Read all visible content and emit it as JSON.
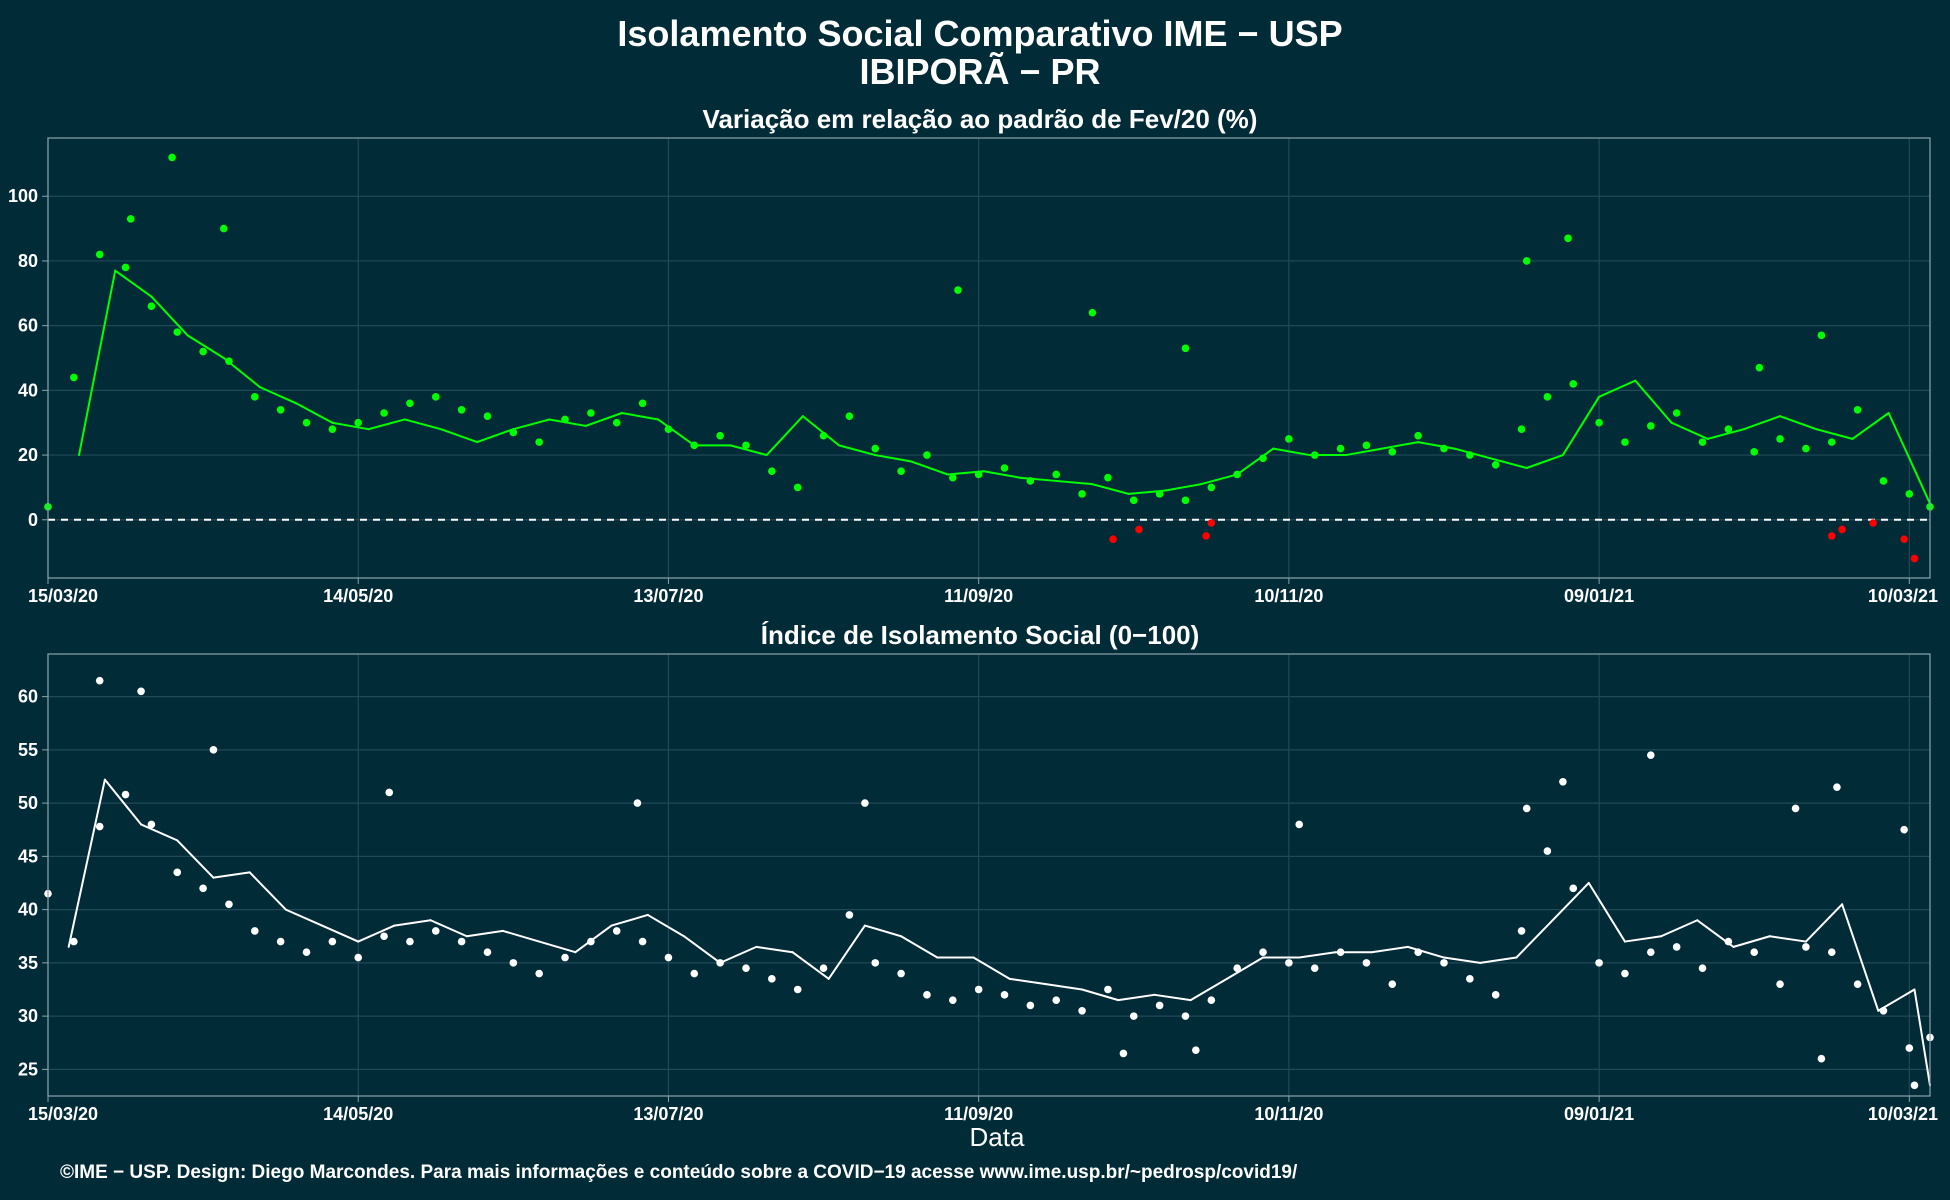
{
  "header": {
    "title": "Isolamento Social Comparativo IME − USP",
    "subtitle": "IBIPORÃ − PR"
  },
  "footer": {
    "xlabel": "Data",
    "caption": "©IME − USP. Design: Diego Marcondes. Para mais informações e conteúdo sobre a COVID−19 acesse www.ime.usp.br/~pedrosp/covid19/"
  },
  "colors": {
    "background": "#022b38",
    "positive": "#00ff00",
    "negative": "#ff0000",
    "index_series": "#ffffff",
    "grid": "#1f4a58"
  },
  "chart_data": [
    {
      "type": "scatter",
      "title": "Variação em relação ao padrão de Fev/20 (%)",
      "x_type": "date",
      "x_range": [
        "2020-03-15",
        "2021-03-14"
      ],
      "x_ticks": [
        "2020-03-15",
        "2020-05-14",
        "2020-07-13",
        "2020-09-11",
        "2020-11-10",
        "2021-01-09",
        "2021-03-10"
      ],
      "x_tick_labels": [
        "15/03/20",
        "14/05/20",
        "13/07/20",
        "11/09/20",
        "10/11/20",
        "09/01/21",
        "10/03/21"
      ],
      "ylim": [
        -18,
        118
      ],
      "y_ticks": [
        0,
        20,
        40,
        60,
        80,
        100
      ],
      "reference_line": 0,
      "grid": true,
      "series": [
        {
          "kind": "points",
          "color_rule": "green when >= 0, red when < 0",
          "x": [
            "2020-03-15",
            "2020-03-20",
            "2020-03-25",
            "2020-03-30",
            "2020-04-04",
            "2020-04-09",
            "2020-04-14",
            "2020-04-19",
            "2020-04-24",
            "2020-04-29",
            "2020-05-04",
            "2020-05-09",
            "2020-05-14",
            "2020-05-19",
            "2020-05-24",
            "2020-05-29",
            "2020-06-03",
            "2020-06-08",
            "2020-06-13",
            "2020-06-18",
            "2020-06-23",
            "2020-06-28",
            "2020-07-03",
            "2020-07-08",
            "2020-07-13",
            "2020-07-18",
            "2020-07-23",
            "2020-07-28",
            "2020-08-02",
            "2020-08-07",
            "2020-08-12",
            "2020-08-17",
            "2020-08-22",
            "2020-08-27",
            "2020-09-01",
            "2020-09-06",
            "2020-09-11",
            "2020-09-16",
            "2020-09-21",
            "2020-09-26",
            "2020-10-01",
            "2020-10-06",
            "2020-10-11",
            "2020-10-16",
            "2020-10-21",
            "2020-10-26",
            "2020-10-31",
            "2020-11-05",
            "2020-11-10",
            "2020-11-15",
            "2020-11-20",
            "2020-11-25",
            "2020-11-30",
            "2020-12-05",
            "2020-12-10",
            "2020-12-15",
            "2020-12-20",
            "2020-12-25",
            "2020-12-30",
            "2021-01-04",
            "2021-01-09",
            "2021-01-14",
            "2021-01-19",
            "2021-01-24",
            "2021-01-29",
            "2021-02-03",
            "2021-02-08",
            "2021-02-13",
            "2021-02-18",
            "2021-02-23",
            "2021-02-28",
            "2021-03-05",
            "2021-03-10",
            "2021-03-14",
            "2020-03-31",
            "2020-04-08",
            "2020-04-18",
            "2020-09-07",
            "2020-10-03",
            "2020-10-21",
            "2020-12-26",
            "2021-01-03",
            "2021-02-09",
            "2021-02-21",
            "2020-10-07",
            "2020-10-12",
            "2020-10-25",
            "2020-10-26",
            "2021-02-23",
            "2021-02-25",
            "2021-03-03",
            "2021-03-09",
            "2021-03-11"
          ],
          "y": [
            4,
            44,
            82,
            78,
            66,
            58,
            52,
            49,
            38,
            34,
            30,
            28,
            30,
            33,
            36,
            38,
            34,
            32,
            27,
            24,
            31,
            33,
            30,
            36,
            28,
            23,
            26,
            23,
            15,
            10,
            26,
            32,
            22,
            15,
            20,
            13,
            14,
            16,
            12,
            14,
            8,
            13,
            6,
            8,
            6,
            10,
            14,
            19,
            25,
            20,
            22,
            23,
            21,
            26,
            22,
            20,
            17,
            28,
            38,
            42,
            30,
            24,
            29,
            33,
            24,
            28,
            21,
            25,
            22,
            24,
            34,
            12,
            8,
            4,
            93,
            112,
            90,
            71,
            64,
            53,
            80,
            87,
            47,
            57,
            -6,
            -3,
            -5,
            -1,
            -5,
            -3,
            -1,
            -6,
            -12
          ]
        },
        {
          "kind": "line",
          "label": "moving average",
          "x": [
            "2020-03-21",
            "2020-03-28",
            "2020-04-04",
            "2020-04-11",
            "2020-04-18",
            "2020-04-25",
            "2020-05-02",
            "2020-05-09",
            "2020-05-16",
            "2020-05-23",
            "2020-05-30",
            "2020-06-06",
            "2020-06-13",
            "2020-06-20",
            "2020-06-27",
            "2020-07-04",
            "2020-07-11",
            "2020-07-18",
            "2020-07-25",
            "2020-08-01",
            "2020-08-08",
            "2020-08-15",
            "2020-08-22",
            "2020-08-29",
            "2020-09-05",
            "2020-09-12",
            "2020-09-19",
            "2020-09-26",
            "2020-10-03",
            "2020-10-10",
            "2020-10-17",
            "2020-10-24",
            "2020-10-31",
            "2020-11-07",
            "2020-11-14",
            "2020-11-21",
            "2020-11-28",
            "2020-12-05",
            "2020-12-12",
            "2020-12-19",
            "2020-12-26",
            "2021-01-02",
            "2021-01-09",
            "2021-01-16",
            "2021-01-23",
            "2021-01-30",
            "2021-02-06",
            "2021-02-13",
            "2021-02-20",
            "2021-02-27",
            "2021-03-06",
            "2021-03-14"
          ],
          "y": [
            20,
            77,
            69,
            57,
            50,
            41,
            36,
            30,
            28,
            31,
            28,
            24,
            28,
            31,
            29,
            33,
            31,
            23,
            23,
            20,
            32,
            23,
            20,
            18,
            14,
            15,
            13,
            12,
            11,
            8,
            9,
            11,
            14,
            22,
            20,
            20,
            22,
            24,
            22,
            19,
            16,
            20,
            38,
            43,
            30,
            25,
            28,
            32,
            28,
            25,
            33,
            5
          ]
        }
      ]
    },
    {
      "type": "scatter",
      "title": "Índice de Isolamento Social (0−100)",
      "x_type": "date",
      "x_range": [
        "2020-03-15",
        "2021-03-14"
      ],
      "x_ticks": [
        "2020-03-15",
        "2020-05-14",
        "2020-07-13",
        "2020-09-11",
        "2020-11-10",
        "2021-01-09",
        "2021-03-10"
      ],
      "x_tick_labels": [
        "15/03/20",
        "14/05/20",
        "13/07/20",
        "11/09/20",
        "10/11/20",
        "09/01/21",
        "10/03/21"
      ],
      "xlabel": "Data",
      "ylim": [
        22.5,
        64
      ],
      "y_ticks": [
        25,
        30,
        35,
        40,
        45,
        50,
        55,
        60
      ],
      "grid": true,
      "series": [
        {
          "kind": "points",
          "x": [
            "2020-03-15",
            "2020-03-20",
            "2020-03-25",
            "2020-03-30",
            "2020-04-04",
            "2020-04-09",
            "2020-04-14",
            "2020-04-19",
            "2020-04-24",
            "2020-04-29",
            "2020-05-04",
            "2020-05-09",
            "2020-05-14",
            "2020-05-19",
            "2020-05-24",
            "2020-05-29",
            "2020-06-03",
            "2020-06-08",
            "2020-06-13",
            "2020-06-18",
            "2020-06-23",
            "2020-06-28",
            "2020-07-03",
            "2020-07-08",
            "2020-07-13",
            "2020-07-18",
            "2020-07-23",
            "2020-07-28",
            "2020-08-02",
            "2020-08-07",
            "2020-08-12",
            "2020-08-17",
            "2020-08-22",
            "2020-08-27",
            "2020-09-01",
            "2020-09-06",
            "2020-09-11",
            "2020-09-16",
            "2020-09-21",
            "2020-09-26",
            "2020-10-01",
            "2020-10-06",
            "2020-10-11",
            "2020-10-16",
            "2020-10-21",
            "2020-10-26",
            "2020-10-31",
            "2020-11-05",
            "2020-11-10",
            "2020-11-15",
            "2020-11-20",
            "2020-11-25",
            "2020-11-30",
            "2020-12-05",
            "2020-12-10",
            "2020-12-15",
            "2020-12-20",
            "2020-12-25",
            "2020-12-30",
            "2021-01-04",
            "2021-01-09",
            "2021-01-14",
            "2021-01-19",
            "2021-01-24",
            "2021-01-29",
            "2021-02-03",
            "2021-02-08",
            "2021-02-13",
            "2021-02-18",
            "2021-02-23",
            "2021-02-28",
            "2021-03-05",
            "2021-03-10",
            "2021-03-14",
            "2020-03-25",
            "2020-04-02",
            "2020-04-16",
            "2020-05-20",
            "2020-07-07",
            "2020-08-20",
            "2020-11-12",
            "2020-12-26",
            "2021-01-02",
            "2021-01-19",
            "2021-02-16",
            "2021-02-24",
            "2021-03-09",
            "2020-10-09",
            "2020-10-23",
            "2021-02-21",
            "2021-03-11"
          ],
          "y": [
            41.5,
            37,
            47.8,
            50.8,
            48,
            43.5,
            42,
            40.5,
            38,
            37,
            36,
            37,
            35.5,
            37.5,
            37,
            38,
            37,
            36,
            35,
            34,
            35.5,
            37,
            38,
            37,
            35.5,
            34,
            35,
            34.5,
            33.5,
            32.5,
            34.5,
            39.5,
            35,
            34,
            32,
            31.5,
            32.5,
            32,
            31,
            31.5,
            30.5,
            32.5,
            30,
            31,
            30,
            31.5,
            34.5,
            36,
            35,
            34.5,
            36,
            35,
            33,
            36,
            35,
            33.5,
            32,
            38,
            45.5,
            42,
            35,
            34,
            36,
            36.5,
            34.5,
            37,
            36,
            33,
            36.5,
            36,
            33,
            30.5,
            27,
            28,
            61.5,
            60.5,
            55,
            51,
            50,
            50,
            48,
            49.5,
            52,
            54.5,
            49.5,
            51.5,
            47.5,
            26.5,
            26.8,
            26,
            23.5
          ]
        },
        {
          "kind": "line",
          "label": "moving average",
          "x": [
            "2020-03-19",
            "2020-03-26",
            "2020-04-02",
            "2020-04-09",
            "2020-04-16",
            "2020-04-23",
            "2020-04-30",
            "2020-05-07",
            "2020-05-14",
            "2020-05-21",
            "2020-05-28",
            "2020-06-04",
            "2020-06-11",
            "2020-06-18",
            "2020-06-25",
            "2020-07-02",
            "2020-07-09",
            "2020-07-16",
            "2020-07-23",
            "2020-07-30",
            "2020-08-06",
            "2020-08-13",
            "2020-08-20",
            "2020-08-27",
            "2020-09-03",
            "2020-09-10",
            "2020-09-17",
            "2020-09-24",
            "2020-10-01",
            "2020-10-08",
            "2020-10-15",
            "2020-10-22",
            "2020-10-29",
            "2020-11-05",
            "2020-11-12",
            "2020-11-19",
            "2020-11-26",
            "2020-12-03",
            "2020-12-10",
            "2020-12-17",
            "2020-12-24",
            "2020-12-31",
            "2021-01-07",
            "2021-01-14",
            "2021-01-21",
            "2021-01-28",
            "2021-02-04",
            "2021-02-11",
            "2021-02-18",
            "2021-02-25",
            "2021-03-04",
            "2021-03-11",
            "2021-03-14"
          ],
          "y": [
            36.5,
            52.2,
            48,
            46.5,
            43,
            43.5,
            40,
            38.5,
            37,
            38.5,
            39,
            37.5,
            38,
            37,
            36,
            38.5,
            39.5,
            37.5,
            35,
            36.5,
            36,
            33.5,
            38.5,
            37.5,
            35.5,
            35.5,
            33.5,
            33,
            32.5,
            31.5,
            32,
            31.5,
            33.5,
            35.5,
            35.5,
            36,
            36,
            36.5,
            35.5,
            35,
            35.5,
            39,
            42.5,
            37,
            37.5,
            39,
            36.5,
            37.5,
            37,
            40.5,
            30.5,
            32.5,
            23.5
          ]
        }
      ]
    }
  ]
}
